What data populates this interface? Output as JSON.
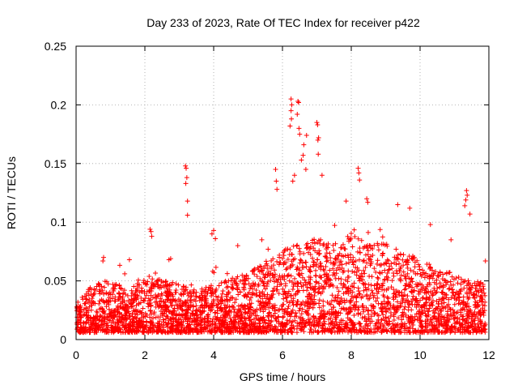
{
  "chart_data": {
    "type": "scatter",
    "title": "Day 233 of 2023, Rate Of TEC Index for receiver p422",
    "xlabel": "GPS time / hours",
    "ylabel": "ROTI / TECUs",
    "xlim": [
      0,
      12
    ],
    "ylim": [
      0,
      0.25
    ],
    "x_ticks": [
      0,
      2,
      4,
      6,
      8,
      10,
      12
    ],
    "x_tick_labels": [
      "0",
      "2",
      "4",
      "6",
      "8",
      "10",
      "12"
    ],
    "y_ticks": [
      0,
      0.05,
      0.1,
      0.15,
      0.2,
      0.25
    ],
    "y_tick_labels": [
      "0",
      "0.05",
      "0.1",
      "0.15",
      "0.2",
      "0.25"
    ],
    "grid": true,
    "marker": "+",
    "series": [
      {
        "name": "p422",
        "color": "#ff0000",
        "background_envelope": [
          [
            0.0,
            0.03
          ],
          [
            0.5,
            0.045
          ],
          [
            1.0,
            0.05
          ],
          [
            1.5,
            0.04
          ],
          [
            2.0,
            0.05
          ],
          [
            2.5,
            0.05
          ],
          [
            3.0,
            0.045
          ],
          [
            3.5,
            0.04
          ],
          [
            4.0,
            0.045
          ],
          [
            4.5,
            0.05
          ],
          [
            5.0,
            0.055
          ],
          [
            5.5,
            0.065
          ],
          [
            6.0,
            0.075
          ],
          [
            6.5,
            0.08
          ],
          [
            7.0,
            0.085
          ],
          [
            7.5,
            0.08
          ],
          [
            8.0,
            0.09
          ],
          [
            8.5,
            0.08
          ],
          [
            9.0,
            0.08
          ],
          [
            9.5,
            0.075
          ],
          [
            10.0,
            0.065
          ],
          [
            10.5,
            0.06
          ],
          [
            11.0,
            0.055
          ],
          [
            11.5,
            0.05
          ],
          [
            11.9,
            0.045
          ]
        ],
        "notable_points": [
          {
            "x": 6.25,
            "y": 0.205
          },
          {
            "x": 6.27,
            "y": 0.2
          },
          {
            "x": 6.25,
            "y": 0.195
          },
          {
            "x": 6.22,
            "y": 0.182
          },
          {
            "x": 6.26,
            "y": 0.188
          },
          {
            "x": 6.45,
            "y": 0.203
          },
          {
            "x": 6.47,
            "y": 0.202
          },
          {
            "x": 6.43,
            "y": 0.192
          },
          {
            "x": 6.48,
            "y": 0.18
          },
          {
            "x": 6.5,
            "y": 0.175
          },
          {
            "x": 7.0,
            "y": 0.185
          },
          {
            "x": 7.02,
            "y": 0.183
          },
          {
            "x": 7.05,
            "y": 0.172
          },
          {
            "x": 7.03,
            "y": 0.17
          },
          {
            "x": 7.04,
            "y": 0.158
          },
          {
            "x": 6.7,
            "y": 0.174
          },
          {
            "x": 6.62,
            "y": 0.166
          },
          {
            "x": 6.6,
            "y": 0.157
          },
          {
            "x": 6.55,
            "y": 0.153
          },
          {
            "x": 6.68,
            "y": 0.145
          },
          {
            "x": 3.18,
            "y": 0.148
          },
          {
            "x": 3.2,
            "y": 0.146
          },
          {
            "x": 3.22,
            "y": 0.138
          },
          {
            "x": 3.19,
            "y": 0.133
          },
          {
            "x": 3.24,
            "y": 0.118
          },
          {
            "x": 3.24,
            "y": 0.106
          },
          {
            "x": 5.8,
            "y": 0.145
          },
          {
            "x": 5.82,
            "y": 0.135
          },
          {
            "x": 5.84,
            "y": 0.128
          },
          {
            "x": 8.2,
            "y": 0.146
          },
          {
            "x": 8.22,
            "y": 0.142
          },
          {
            "x": 8.24,
            "y": 0.136
          },
          {
            "x": 7.15,
            "y": 0.14
          },
          {
            "x": 6.35,
            "y": 0.14
          },
          {
            "x": 6.3,
            "y": 0.135
          },
          {
            "x": 11.35,
            "y": 0.127
          },
          {
            "x": 11.37,
            "y": 0.123
          },
          {
            "x": 11.33,
            "y": 0.119
          },
          {
            "x": 11.3,
            "y": 0.114
          },
          {
            "x": 11.45,
            "y": 0.107
          },
          {
            "x": 8.45,
            "y": 0.12
          },
          {
            "x": 8.48,
            "y": 0.117
          },
          {
            "x": 7.85,
            "y": 0.118
          },
          {
            "x": 9.35,
            "y": 0.115
          },
          {
            "x": 9.7,
            "y": 0.112
          },
          {
            "x": 10.3,
            "y": 0.098
          },
          {
            "x": 2.15,
            "y": 0.094
          },
          {
            "x": 2.18,
            "y": 0.092
          },
          {
            "x": 2.2,
            "y": 0.088
          },
          {
            "x": 4.0,
            "y": 0.093
          },
          {
            "x": 3.95,
            "y": 0.09
          },
          {
            "x": 4.05,
            "y": 0.086
          },
          {
            "x": 0.8,
            "y": 0.07
          },
          {
            "x": 0.78,
            "y": 0.067
          },
          {
            "x": 1.55,
            "y": 0.068
          },
          {
            "x": 2.75,
            "y": 0.069
          },
          {
            "x": 2.7,
            "y": 0.068
          },
          {
            "x": 5.4,
            "y": 0.085
          },
          {
            "x": 4.7,
            "y": 0.08
          },
          {
            "x": 10.9,
            "y": 0.085
          },
          {
            "x": 11.9,
            "y": 0.067
          }
        ]
      }
    ]
  }
}
